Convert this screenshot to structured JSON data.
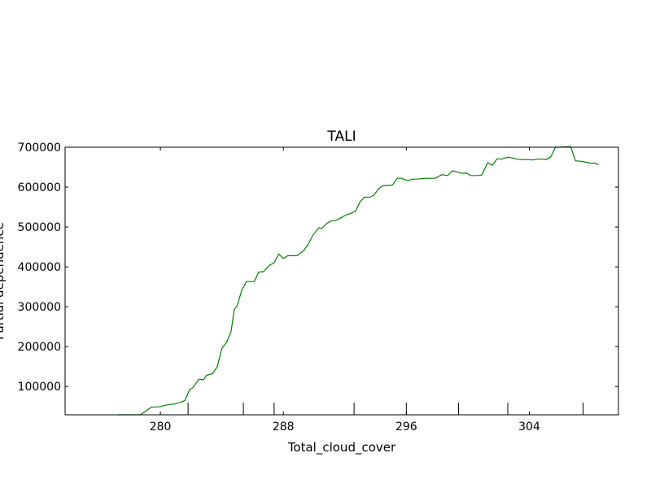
{
  "chart_data": {
    "type": "line",
    "title": "TALI",
    "xlabel": "Total_cloud_cover",
    "ylabel": "Partial dependence",
    "xlim": [
      273.8,
      309.8
    ],
    "ylim": [
      29000,
      700000
    ],
    "xticks": [
      {
        "value": 280,
        "label": "280"
      },
      {
        "value": 288,
        "label": "288"
      },
      {
        "value": 296,
        "label": "296"
      },
      {
        "value": 304,
        "label": "304"
      }
    ],
    "yticks": [
      {
        "value": 100000,
        "label": "100000"
      },
      {
        "value": 200000,
        "label": "200000"
      },
      {
        "value": 300000,
        "label": "300000"
      },
      {
        "value": 400000,
        "label": "400000"
      },
      {
        "value": 500000,
        "label": "500000"
      },
      {
        "value": 600000,
        "label": "600000"
      },
      {
        "value": 700000,
        "label": "700000"
      }
    ],
    "rug": [
      281.8,
      285.4,
      287.4,
      292.6,
      296.0,
      299.4,
      302.6,
      307.5
    ],
    "grid": false,
    "series": [
      {
        "color": "#008000",
        "x": [
          277.2,
          278.1,
          278.7,
          279.4,
          279.9,
          280.2,
          280.6,
          280.9,
          281.3,
          281.6,
          281.9,
          282.1,
          282.5,
          282.8,
          283.0,
          283.4,
          283.7,
          284.0,
          284.3,
          284.6,
          284.8,
          285.0,
          285.3,
          285.6,
          285.9,
          286.1,
          286.4,
          286.7,
          287.1,
          287.4,
          287.7,
          288.0,
          288.3,
          288.6,
          288.9,
          289.3,
          289.6,
          289.9,
          290.3,
          290.5,
          290.8,
          291.1,
          291.4,
          291.8,
          292.1,
          292.4,
          292.7,
          293.0,
          293.3,
          293.6,
          293.9,
          294.2,
          294.5,
          294.8,
          295.1,
          295.4,
          295.7,
          296.1,
          296.4,
          296.7,
          297.0,
          297.3,
          297.6,
          297.9,
          298.3,
          298.7,
          299.0,
          299.3,
          299.6,
          299.9,
          300.2,
          300.6,
          300.9,
          301.3,
          301.6,
          301.9,
          302.2,
          302.6,
          302.9,
          303.2,
          303.5,
          303.8,
          304.2,
          304.5,
          304.8,
          305.1,
          305.4,
          305.7,
          306.0,
          306.3,
          306.7,
          307.0,
          307.3,
          307.6,
          308.0,
          308.3,
          308.5
        ],
        "y": [
          29000,
          29000,
          29000,
          48000,
          49000,
          52000,
          55000,
          56000,
          60000,
          65000,
          92000,
          97000,
          118000,
          117000,
          128000,
          132000,
          150000,
          196000,
          210000,
          238000,
          293000,
          303000,
          342000,
          363000,
          363000,
          363000,
          387000,
          388000,
          404000,
          410000,
          432000,
          421000,
          428000,
          428000,
          428000,
          440000,
          455000,
          478000,
          498000,
          496000,
          508000,
          515000,
          516000,
          524000,
          531000,
          534000,
          540000,
          564000,
          575000,
          574000,
          580000,
          596000,
          604000,
          604000,
          605000,
          622000,
          622000,
          616000,
          620000,
          620000,
          621000,
          622000,
          622000,
          622000,
          631000,
          629000,
          641000,
          638000,
          635000,
          635000,
          629000,
          629000,
          630000,
          661000,
          655000,
          671000,
          670000,
          675000,
          673000,
          670000,
          669000,
          669000,
          668000,
          670000,
          670000,
          669000,
          676000,
          700000,
          700000,
          701000,
          701000,
          666000,
          665000,
          663000,
          660000,
          660000,
          656000
        ]
      }
    ]
  }
}
